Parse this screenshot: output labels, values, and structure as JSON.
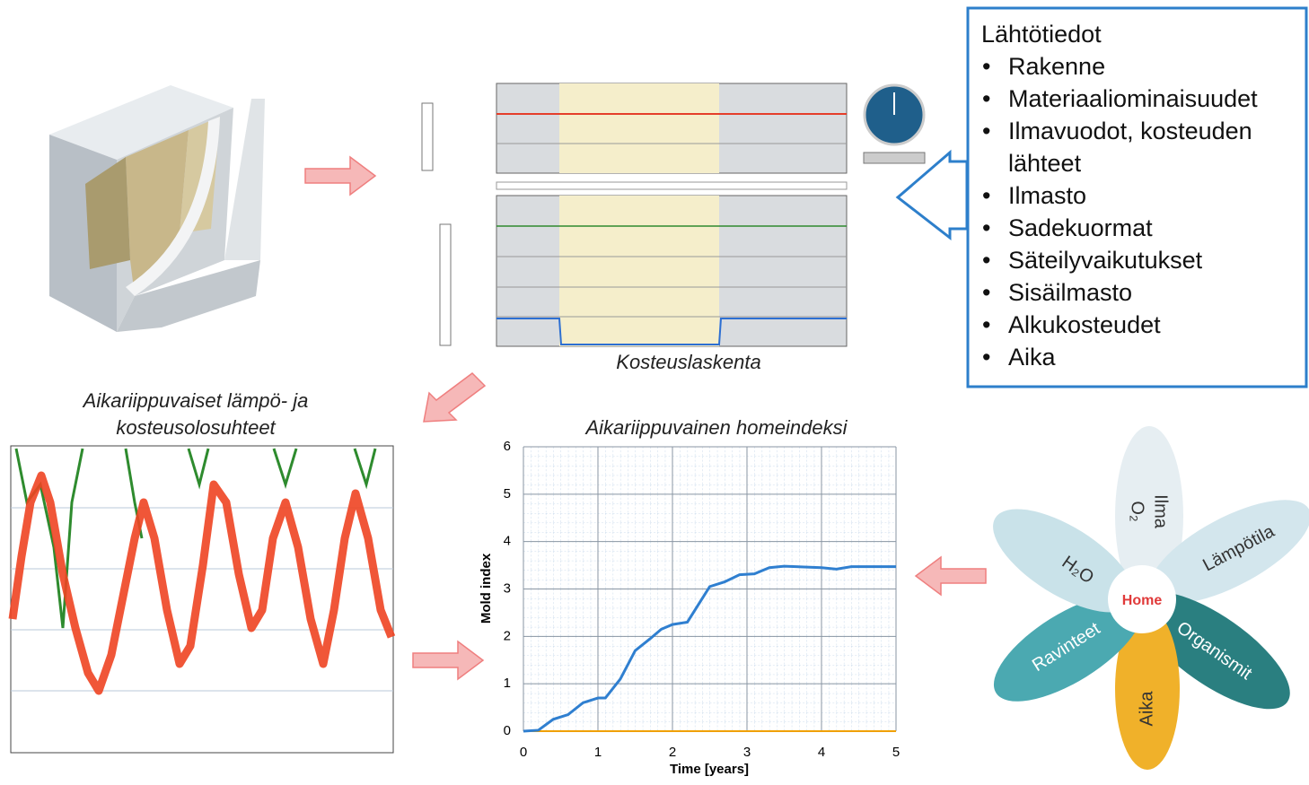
{
  "inputs": {
    "title": "Lähtötiedot",
    "items": [
      "Rakenne",
      "Materiaaliominaisuudet",
      "Ilmavuodot, kosteuden",
      "lähteet",
      "Ilmasto",
      "Sadekuormat",
      "Säteilyvaikutukset",
      "Sisäilmasto",
      "Alkukosteudet",
      "Aika"
    ]
  },
  "calculation_label": "Kosteuslaskenta",
  "conditions_label": [
    "Aikariippuvaiset lämpö- ja",
    "kosteusolosuhteet"
  ],
  "mold_chart": {
    "type": "line",
    "title": "Aikariippuvainen homeindeksi",
    "x_label": "Time [years]",
    "y_label": "Mold index",
    "x": [
      0,
      0.2,
      0.4,
      0.6,
      0.8,
      1.0,
      1.1,
      1.3,
      1.5,
      1.7,
      1.85,
      2.0,
      2.2,
      2.4,
      2.5,
      2.7,
      2.9,
      3.1,
      3.3,
      3.5,
      4.0,
      4.2,
      4.4,
      5.0
    ],
    "values": [
      0,
      0.02,
      0.25,
      0.35,
      0.6,
      0.7,
      0.7,
      1.1,
      1.7,
      1.95,
      2.15,
      2.25,
      2.3,
      2.8,
      3.05,
      3.15,
      3.3,
      3.32,
      3.45,
      3.48,
      3.45,
      3.42,
      3.47,
      3.47
    ],
    "color": "#2f7fd0",
    "xlim": [
      0,
      5
    ],
    "xticks": [
      0,
      1,
      2,
      3,
      4,
      5
    ],
    "ylim": [
      0,
      6
    ],
    "yticks": [
      0,
      1,
      2,
      3,
      4,
      5,
      6
    ],
    "grid": true
  },
  "flower": {
    "center": "Home",
    "petals": [
      "Ilma",
      "O₂",
      "Lämpötila",
      "Organismit",
      "Aika",
      "Ravinteet",
      "H₂O"
    ]
  }
}
